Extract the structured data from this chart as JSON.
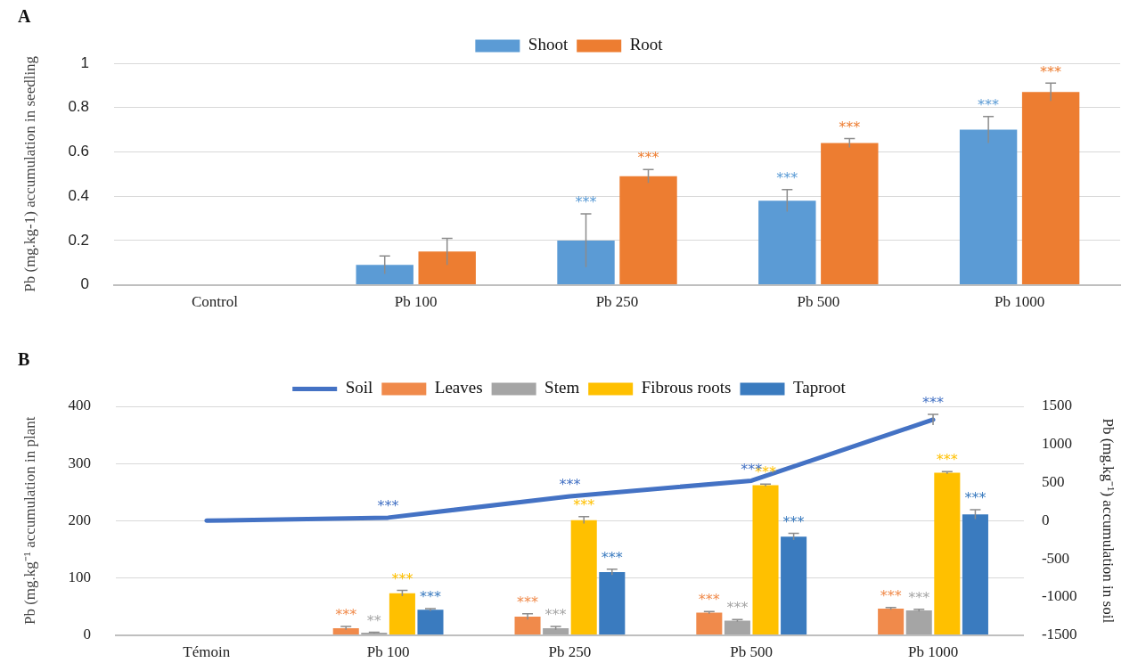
{
  "chart_data": [
    {
      "type": "bar",
      "title": "A",
      "ylabel": "Pb (mg.kg-1) accumulation in seedling",
      "categories": [
        "Control",
        "Pb 100",
        "Pb 250",
        "Pb 500",
        "Pb 1000"
      ],
      "series": [
        {
          "name": "Shoot",
          "color": "#5b9bd5",
          "values": [
            0,
            0.09,
            0.2,
            0.38,
            0.7
          ],
          "errors": [
            null,
            0.04,
            0.12,
            0.05,
            0.06
          ],
          "value_labels": [
            null,
            null,
            "***",
            "***",
            "***"
          ]
        },
        {
          "name": "Root",
          "color": "#ed7d31",
          "values": [
            0,
            0.15,
            0.49,
            0.64,
            0.87
          ],
          "errors": [
            null,
            0.06,
            0.03,
            0.02,
            0.04
          ],
          "value_labels": [
            null,
            null,
            "***",
            "***",
            "***"
          ]
        }
      ],
      "ylim": [
        0,
        1
      ],
      "yticks": [
        0,
        0.2,
        0.4,
        0.6,
        0.8,
        1
      ],
      "grid": "y",
      "legend": "top"
    },
    {
      "type": "bar",
      "title": "B",
      "ylabel": "Pb (mg.kg⁻¹ accumulation in plant",
      "y2label": "Pb (mg.kg⁻¹) accumulation in soil",
      "categories": [
        "Témoin",
        "Pb 100",
        "Pb 250",
        "Pb 500",
        "Pb 1000"
      ],
      "series": [
        {
          "name": "Leaves",
          "color": "#f08a4b",
          "values": [
            0,
            12,
            32,
            39,
            46
          ],
          "errors": [
            null,
            3,
            5,
            2,
            2
          ],
          "value_labels": [
            null,
            "***",
            "***",
            "***",
            "***"
          ]
        },
        {
          "name": "Stem",
          "color": "#a5a5a5",
          "values": [
            0,
            4,
            12,
            25,
            43
          ],
          "errors": [
            null,
            1,
            3,
            2,
            2
          ],
          "value_labels": [
            null,
            "**",
            "***",
            "***",
            "***"
          ]
        },
        {
          "name": "Fibrous roots",
          "color": "#ffc000",
          "values": [
            0,
            73,
            201,
            262,
            284
          ],
          "errors": [
            null,
            5,
            6,
            2,
            2
          ],
          "value_labels": [
            null,
            "***",
            "***",
            "***",
            "***"
          ]
        },
        {
          "name": "Taproot",
          "color": "#3a7bbf",
          "values": [
            0,
            44,
            110,
            172,
            211
          ],
          "errors": [
            null,
            2,
            5,
            6,
            8
          ],
          "value_labels": [
            null,
            "***",
            "***",
            "***",
            "***"
          ]
        },
        {
          "name": "Soil",
          "type": "line",
          "axis": "y2",
          "color": "#4472c4",
          "values": [
            0,
            40,
            320,
            525,
            1325
          ],
          "errors": [
            null,
            null,
            null,
            null,
            70
          ],
          "value_labels": [
            null,
            "***",
            "***",
            "***",
            "***"
          ]
        }
      ],
      "ylim": [
        0,
        400
      ],
      "yticks": [
        0,
        100,
        200,
        300,
        400
      ],
      "y2lim": [
        -1500,
        1500
      ],
      "y2ticks": [
        -1500,
        -1000,
        -500,
        0,
        500,
        1000,
        1500
      ],
      "grid": "y",
      "legend": "top",
      "marker": "none"
    }
  ]
}
